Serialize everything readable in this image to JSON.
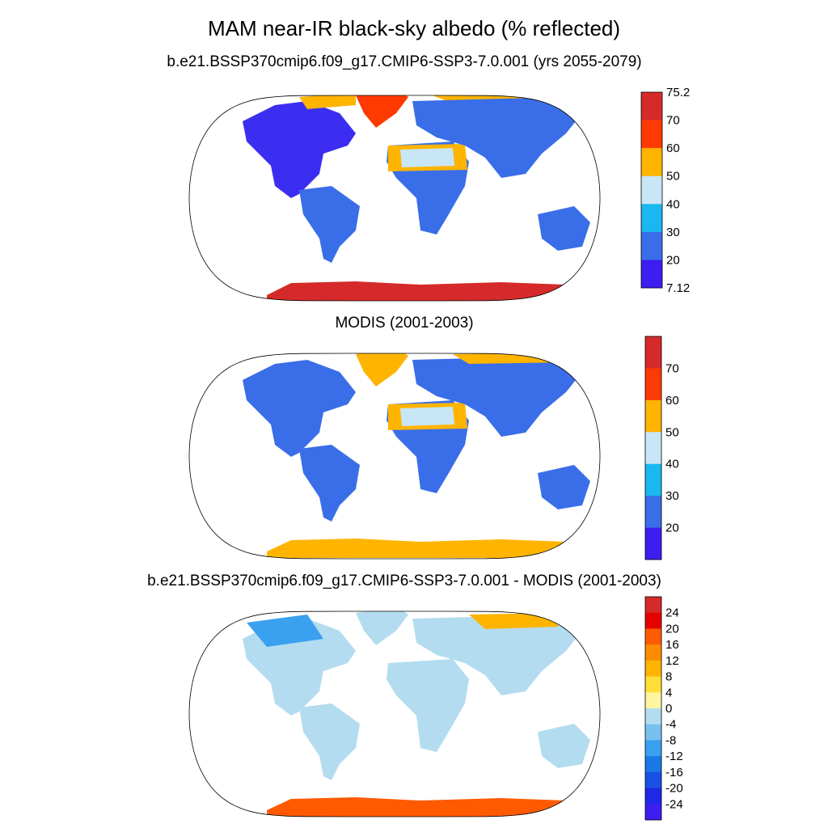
{
  "title": "MAM near-IR black-sky albedo (% reflected)",
  "panels": [
    {
      "title": "b.e21.BSSP370cmip6.f09_g17.CMIP6-SSP3-7.0.001 (yrs 2055-2079)",
      "colorbar": {
        "labels": [
          "75.2",
          "70",
          "60",
          "50",
          "40",
          "30",
          "20",
          "7.12"
        ],
        "colors": [
          "#d62a2a",
          "#ff3a00",
          "#ffb400",
          "#c8e6f5",
          "#1ab8f0",
          "#3a6ee8",
          "#3c1ef0"
        ]
      },
      "icecap": "#d62a2a"
    },
    {
      "title": "MODIS (2001-2003)",
      "colorbar": {
        "labels": [
          "70",
          "60",
          "50",
          "40",
          "30",
          "20"
        ],
        "colors": [
          "#d62a2a",
          "#ff3a00",
          "#ffb400",
          "#c8e6f5",
          "#1ab8f0",
          "#3a6ee8",
          "#3c1ef0"
        ]
      },
      "icecap": "#ffb400"
    },
    {
      "title": "b.e21.BSSP370cmip6.f09_g17.CMIP6-SSP3-7.0.001 - MODIS (2001-2003)",
      "colorbar": {
        "labels": [
          "24",
          "20",
          "16",
          "12",
          "8",
          "4",
          "0",
          "-4",
          "-8",
          "-12",
          "-16",
          "-20",
          "-24"
        ],
        "colors": [
          "#d62a2a",
          "#e60000",
          "#ff5a00",
          "#ff8c00",
          "#ffb400",
          "#ffde3a",
          "#fff5a0",
          "#b4dcf0",
          "#78c0f0",
          "#3aa0f0",
          "#1a78e6",
          "#1a50e6",
          "#1e28e6",
          "#3c1ef0"
        ]
      },
      "icecap": "#ff5a00"
    }
  ]
}
